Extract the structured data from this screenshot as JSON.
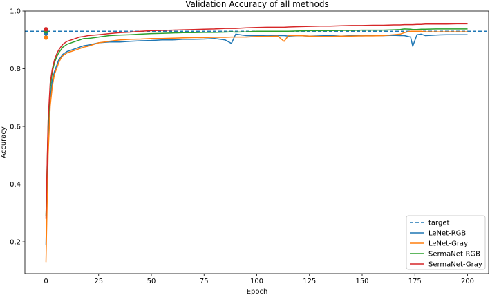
{
  "chart_data": {
    "type": "line",
    "title": "Validation Accuracy of all methods",
    "xlabel": "Epoch",
    "ylabel": "Accuracy",
    "xlim": [
      -10,
      210
    ],
    "ylim": [
      0.09,
      1.0
    ],
    "xticks": [
      0,
      25,
      50,
      75,
      100,
      125,
      150,
      175,
      200
    ],
    "yticks": [
      0.2,
      0.4,
      0.6,
      0.8,
      1.0
    ],
    "ytick_labels": [
      "0.2",
      "0.4",
      "0.6",
      "0.8",
      "1.0"
    ],
    "grid": false,
    "legend_position": "lower-right",
    "target": {
      "name": "target",
      "value": 0.93,
      "color": "#1f77b4",
      "style": "dashed"
    },
    "x": [
      0,
      1,
      2,
      3,
      4,
      5,
      6,
      7,
      8,
      9,
      10,
      12,
      14,
      16,
      18,
      20,
      25,
      30,
      35,
      40,
      45,
      50,
      55,
      60,
      65,
      70,
      75,
      80,
      85,
      88,
      90,
      95,
      100,
      105,
      110,
      113,
      115,
      120,
      125,
      130,
      135,
      140,
      145,
      150,
      155,
      160,
      165,
      168,
      170,
      173,
      174,
      176,
      178,
      180,
      185,
      190,
      195,
      200
    ],
    "series": [
      {
        "name": "LeNet-RGB",
        "color": "#1f77b4",
        "marker_value": 0.922,
        "values": [
          0.19,
          0.55,
          0.7,
          0.76,
          0.79,
          0.81,
          0.83,
          0.84,
          0.85,
          0.855,
          0.86,
          0.865,
          0.87,
          0.875,
          0.88,
          0.882,
          0.89,
          0.893,
          0.893,
          0.895,
          0.897,
          0.898,
          0.9,
          0.9,
          0.902,
          0.902,
          0.903,
          0.905,
          0.9,
          0.888,
          0.92,
          0.915,
          0.915,
          0.914,
          0.915,
          0.915,
          0.913,
          0.915,
          0.913,
          0.914,
          0.915,
          0.913,
          0.915,
          0.914,
          0.915,
          0.915,
          0.916,
          0.915,
          0.915,
          0.91,
          0.878,
          0.918,
          0.92,
          0.915,
          0.917,
          0.918,
          0.918,
          0.918
        ]
      },
      {
        "name": "LeNet-Gray",
        "color": "#ff7f0e",
        "marker_value": 0.908,
        "values": [
          0.13,
          0.5,
          0.67,
          0.74,
          0.78,
          0.8,
          0.82,
          0.835,
          0.845,
          0.85,
          0.855,
          0.86,
          0.865,
          0.87,
          0.875,
          0.878,
          0.89,
          0.895,
          0.9,
          0.902,
          0.903,
          0.905,
          0.905,
          0.906,
          0.907,
          0.908,
          0.908,
          0.909,
          0.909,
          0.91,
          0.91,
          0.91,
          0.912,
          0.912,
          0.913,
          0.895,
          0.915,
          0.915,
          0.913,
          0.912,
          0.912,
          0.913,
          0.913,
          0.914,
          0.914,
          0.915,
          0.918,
          0.92,
          0.925,
          0.93,
          0.93,
          0.93,
          0.93,
          0.928,
          0.928,
          0.928,
          0.928,
          0.928
        ]
      },
      {
        "name": "SermaNet-RGB",
        "color": "#2ca02c",
        "marker_value": 0.93,
        "values": [
          0.29,
          0.6,
          0.73,
          0.79,
          0.82,
          0.84,
          0.855,
          0.865,
          0.875,
          0.88,
          0.885,
          0.89,
          0.895,
          0.9,
          0.905,
          0.905,
          0.91,
          0.915,
          0.917,
          0.918,
          0.92,
          0.922,
          0.923,
          0.924,
          0.925,
          0.925,
          0.926,
          0.926,
          0.927,
          0.928,
          0.927,
          0.928,
          0.93,
          0.93,
          0.93,
          0.93,
          0.93,
          0.931,
          0.932,
          0.932,
          0.932,
          0.933,
          0.933,
          0.934,
          0.934,
          0.934,
          0.935,
          0.936,
          0.938,
          0.937,
          0.936,
          0.936,
          0.937,
          0.937,
          0.938,
          0.938,
          0.938,
          0.938
        ]
      },
      {
        "name": "SermaNet-Gray",
        "color": "#d62728",
        "marker_value": 0.937,
        "values": [
          0.28,
          0.62,
          0.75,
          0.8,
          0.83,
          0.85,
          0.865,
          0.875,
          0.885,
          0.89,
          0.895,
          0.9,
          0.905,
          0.91,
          0.912,
          0.915,
          0.918,
          0.922,
          0.925,
          0.927,
          0.93,
          0.932,
          0.933,
          0.934,
          0.935,
          0.936,
          0.937,
          0.938,
          0.94,
          0.94,
          0.94,
          0.942,
          0.943,
          0.944,
          0.944,
          0.944,
          0.945,
          0.946,
          0.947,
          0.948,
          0.948,
          0.949,
          0.95,
          0.95,
          0.951,
          0.951,
          0.952,
          0.952,
          0.953,
          0.953,
          0.953,
          0.954,
          0.954,
          0.955,
          0.955,
          0.955,
          0.956,
          0.956
        ]
      }
    ]
  }
}
